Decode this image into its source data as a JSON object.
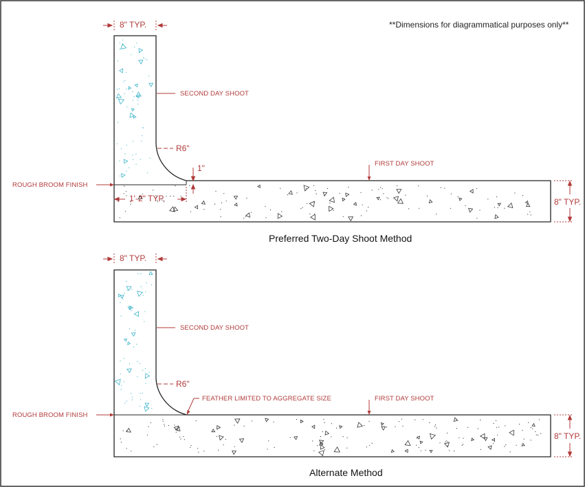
{
  "note": "**Dimensions for diagrammatical purposes only**",
  "colors": {
    "dimension": "#b13a3a",
    "outline": "#222222",
    "aggregate_wall": "#3bb3c9",
    "aggregate_slab": "#333333"
  },
  "details": [
    {
      "caption": "Preferred Two-Day Shoot Method",
      "wall_width_label": "8\" TYP.",
      "second_day_label": "SECOND DAY SHOOT",
      "radius_label": "R6\"",
      "first_day_label": "FIRST DAY SHOOT",
      "broom_label": "ROUGH BROOM FINISH",
      "slab_thickness_label": "8\" TYP.",
      "step_label": "1\"",
      "extension_label": "1'-2\" TYP."
    },
    {
      "caption": "Alternate Method",
      "wall_width_label": "8\" TYP.",
      "second_day_label": "SECOND DAY SHOOT",
      "radius_label": "R6\"",
      "first_day_label": "FIRST DAY SHOOT",
      "broom_label": "ROUGH BROOM FINISH",
      "slab_thickness_label": "8\" TYP.",
      "feather_label": "FEATHER LIMITED TO AGGREGATE SIZE"
    }
  ]
}
